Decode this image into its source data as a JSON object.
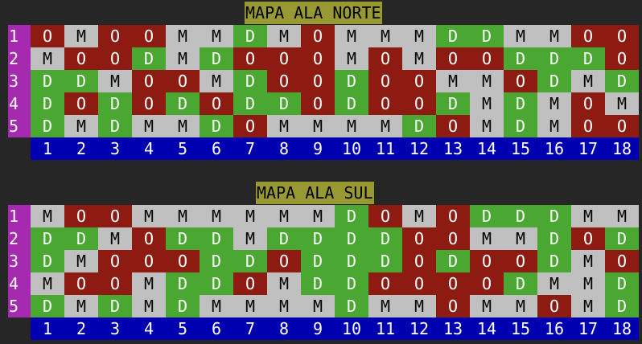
{
  "colors": {
    "background": "#262626",
    "title_bg": "#999933",
    "row_label_bg": "#a52aaf",
    "O": "#8e1b12",
    "M": "#c0c0c0",
    "D": "#4aa832",
    "axis_bg": "#0000b0"
  },
  "columns": [
    "1",
    "2",
    "3",
    "4",
    "5",
    "6",
    "7",
    "8",
    "9",
    "10",
    "11",
    "12",
    "13",
    "14",
    "15",
    "16",
    "17",
    "18"
  ],
  "maps": [
    {
      "title": "MAPA ALA NORTE",
      "rows": [
        {
          "label": "1",
          "cells": [
            "O",
            "M",
            "O",
            "O",
            "M",
            "M",
            "D",
            "M",
            "O",
            "M",
            "M",
            "M",
            "D",
            "D",
            "M",
            "M",
            "O",
            "O"
          ]
        },
        {
          "label": "2",
          "cells": [
            "M",
            "O",
            "O",
            "D",
            "M",
            "D",
            "O",
            "O",
            "O",
            "M",
            "O",
            "M",
            "O",
            "O",
            "D",
            "D",
            "D",
            "O"
          ]
        },
        {
          "label": "3",
          "cells": [
            "D",
            "D",
            "M",
            "O",
            "O",
            "M",
            "D",
            "O",
            "O",
            "D",
            "O",
            "O",
            "M",
            "M",
            "O",
            "D",
            "M",
            "D"
          ]
        },
        {
          "label": "4",
          "cells": [
            "D",
            "O",
            "D",
            "O",
            "D",
            "O",
            "D",
            "D",
            "O",
            "D",
            "O",
            "O",
            "D",
            "M",
            "D",
            "M",
            "O",
            "M"
          ]
        },
        {
          "label": "5",
          "cells": [
            "D",
            "M",
            "D",
            "M",
            "M",
            "D",
            "O",
            "M",
            "M",
            "M",
            "M",
            "D",
            "O",
            "M",
            "D",
            "M",
            "O",
            "O"
          ]
        }
      ]
    },
    {
      "title": "MAPA ALA SUL",
      "rows": [
        {
          "label": "1",
          "cells": [
            "M",
            "O",
            "O",
            "M",
            "M",
            "M",
            "M",
            "M",
            "M",
            "D",
            "O",
            "M",
            "O",
            "D",
            "D",
            "D",
            "M",
            "M"
          ]
        },
        {
          "label": "2",
          "cells": [
            "D",
            "D",
            "M",
            "O",
            "D",
            "D",
            "M",
            "D",
            "D",
            "D",
            "D",
            "O",
            "O",
            "M",
            "M",
            "D",
            "O",
            "D"
          ]
        },
        {
          "label": "3",
          "cells": [
            "D",
            "M",
            "O",
            "O",
            "O",
            "D",
            "D",
            "O",
            "D",
            "D",
            "D",
            "O",
            "D",
            "O",
            "O",
            "D",
            "M",
            "O"
          ]
        },
        {
          "label": "4",
          "cells": [
            "M",
            "O",
            "O",
            "M",
            "D",
            "D",
            "O",
            "M",
            "D",
            "D",
            "O",
            "O",
            "O",
            "O",
            "D",
            "M",
            "M",
            "D"
          ]
        },
        {
          "label": "5",
          "cells": [
            "D",
            "M",
            "D",
            "M",
            "D",
            "M",
            "M",
            "M",
            "M",
            "D",
            "M",
            "M",
            "O",
            "M",
            "M",
            "O",
            "M",
            "D"
          ]
        }
      ]
    }
  ]
}
